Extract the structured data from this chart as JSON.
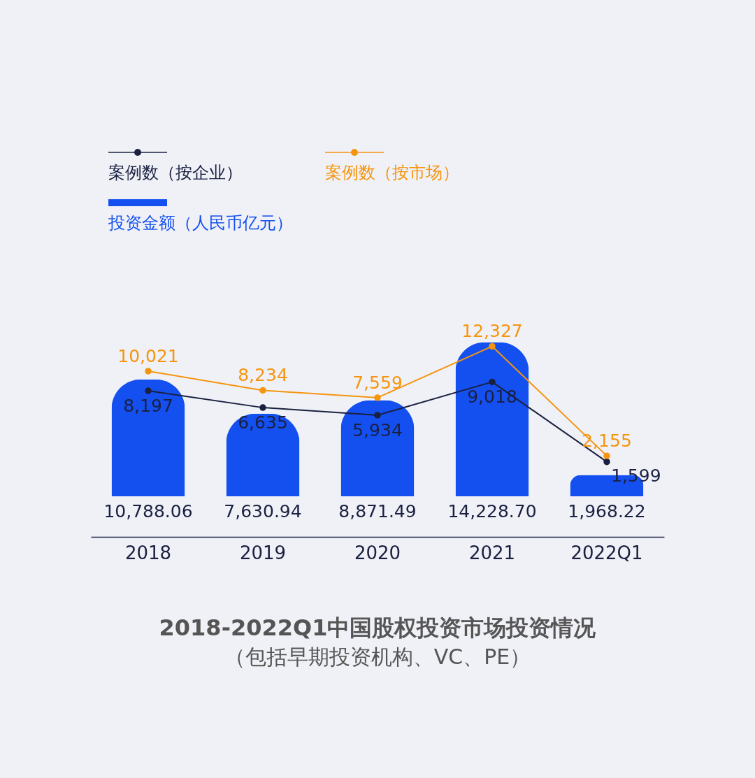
{
  "chart_data": {
    "type": "bar",
    "title": "2018-2022Q1中国股权投资市场投资情况",
    "subtitle": "（包括早期投资机构、VC、PE）",
    "categories": [
      "2018",
      "2019",
      "2020",
      "2021",
      "2022Q1"
    ],
    "series": [
      {
        "name": "案例数（按企业）",
        "type": "line",
        "axis": "y2",
        "color": "#1a2040",
        "values": [
          8197,
          6635,
          5934,
          9018,
          1599
        ],
        "value_labels": [
          "8,197",
          "6,635",
          "5,934",
          "9,018",
          "1,599"
        ]
      },
      {
        "name": "案例数（按市场）",
        "type": "line",
        "axis": "y2",
        "color": "#f5950f",
        "values": [
          10021,
          8234,
          7559,
          12327,
          2155
        ],
        "value_labels": [
          "10,021",
          "8,234",
          "7,559",
          "12,327",
          "2,155"
        ]
      },
      {
        "name": "投资金额（人民币亿元）",
        "color": "#1450f0",
        "values": [
          10788.06,
          7630.94,
          8871.49,
          14228.7,
          1968.22
        ],
        "value_labels": [
          "10,788.06",
          "7,630.94",
          "8,871.49",
          "14,228.70",
          "1,968.22"
        ]
      }
    ],
    "legend": "top left",
    "marker": "circle",
    "line_style": "solid"
  }
}
